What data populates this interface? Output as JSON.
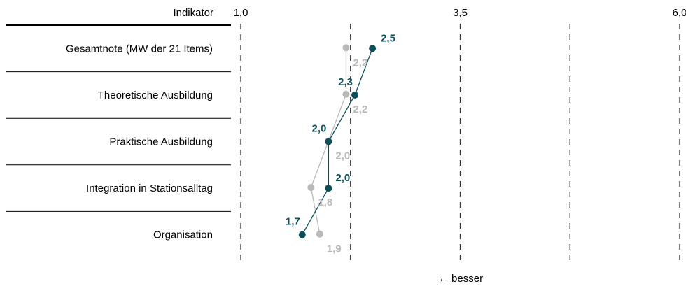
{
  "chart_data": {
    "type": "line",
    "header_label": "Indikator",
    "categories": [
      "Gesamtnote (MW der 21 Items)",
      "Theoretische Ausbildung",
      "Praktische Ausbildung",
      "Integration in Stationsalltag",
      "Organisation"
    ],
    "x_ticks": [
      "1,0",
      "3,5",
      "6,0"
    ],
    "xlim": [
      1.0,
      6.0
    ],
    "series": [
      {
        "values": [
          2.5,
          2.3,
          2.0,
          2.0,
          1.7
        ],
        "labels": [
          "2,5",
          "2,3",
          "2,0",
          "2,0",
          "1,7"
        ],
        "color": "#0b4f58"
      },
      {
        "values": [
          2.2,
          2.2,
          2.0,
          1.8,
          1.9
        ],
        "labels": [
          "2,2",
          "2,2",
          "2,0",
          "1,8",
          "1,9"
        ],
        "color": "#b9b9b9"
      }
    ],
    "footer": "← besser",
    "grid": "dashed-vertical"
  }
}
